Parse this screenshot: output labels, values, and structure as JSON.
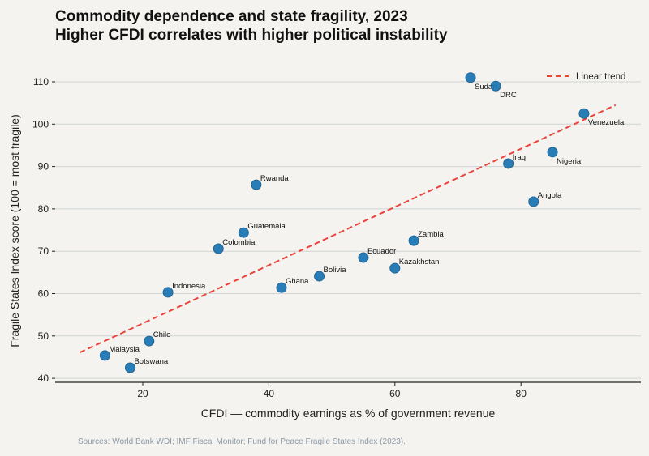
{
  "chart_data": {
    "type": "scatter",
    "title": "Commodity dependence and state fragility, 2023",
    "subtitle": "Higher CFDI correlates with higher political instability",
    "xlabel": "CFDI — commodity earnings as % of government revenue",
    "ylabel": "Fragile States Index score (100 = most fragile)",
    "xlim": [
      5,
      100
    ],
    "ylim": [
      39,
      114
    ],
    "xticks": [
      20,
      40,
      60,
      80
    ],
    "yticks": [
      40,
      50,
      60,
      70,
      80,
      90,
      100,
      110
    ],
    "grid": "horizontal",
    "legend_position": "top-right",
    "colors": {
      "points": "#1f77b4",
      "trend": "#e8453c",
      "grid": "#cfd4d6",
      "background": "#f4f3ef"
    },
    "points": [
      {
        "label": "Sudan",
        "x": 72,
        "y": 111
      },
      {
        "label": "DRC",
        "x": 76,
        "y": 109
      },
      {
        "label": "Venezuela",
        "x": 90,
        "y": 102.5
      },
      {
        "label": "Iraq",
        "x": 78,
        "y": 90.7
      },
      {
        "label": "Nigeria",
        "x": 85,
        "y": 93.4
      },
      {
        "label": "Angola",
        "x": 82,
        "y": 81.7
      },
      {
        "label": "Rwanda",
        "x": 38,
        "y": 85.7
      },
      {
        "label": "Guatemala",
        "x": 36,
        "y": 74.4
      },
      {
        "label": "Colombia",
        "x": 32,
        "y": 70.6
      },
      {
        "label": "Zambia",
        "x": 63,
        "y": 72.5
      },
      {
        "label": "Ecuador",
        "x": 55,
        "y": 68.5
      },
      {
        "label": "Kazakhstan",
        "x": 60,
        "y": 66
      },
      {
        "label": "Bolivia",
        "x": 48,
        "y": 64.1
      },
      {
        "label": "Ghana",
        "x": 42,
        "y": 61.4
      },
      {
        "label": "Indonesia",
        "x": 24,
        "y": 60.3
      },
      {
        "label": "Chile",
        "x": 21,
        "y": 48.8
      },
      {
        "label": "Malaysia",
        "x": 14,
        "y": 45.4
      },
      {
        "label": "Botswana",
        "x": 18,
        "y": 42.5
      }
    ],
    "trend": {
      "name": "Linear trend",
      "x": [
        10,
        95
      ],
      "y": [
        46.1,
        104.5
      ]
    }
  },
  "source": "Sources: World Bank WDI; IMF Fiscal Monitor; Fund for Peace Fragile States Index (2023)."
}
